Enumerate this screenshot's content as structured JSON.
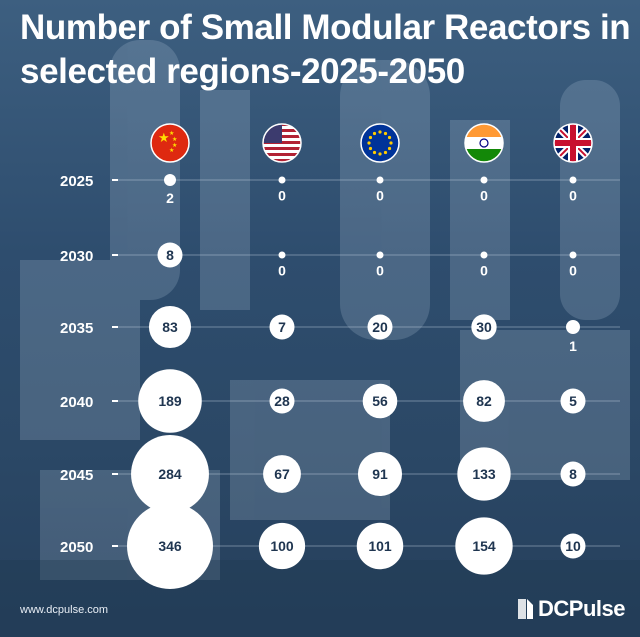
{
  "title": "Number of Small Modular Reactors in selected regions-2025-2050",
  "footer": {
    "website": "www.dcpulse.com",
    "brand": "DCPulse"
  },
  "colors": {
    "bubble": "#ffffff",
    "label": "#1f3550",
    "grid": "#c5d3e2"
  },
  "chart_data": {
    "type": "bubble",
    "title": "Number of Small Modular Reactors in selected regions-2025-2050",
    "rows": [
      "2025",
      "2030",
      "2035",
      "2040",
      "2045",
      "2050"
    ],
    "regions": [
      {
        "name": "China",
        "flag": "china-flag-icon"
      },
      {
        "name": "United States",
        "flag": "usa-flag-icon"
      },
      {
        "name": "European Union",
        "flag": "eu-flag-icon"
      },
      {
        "name": "India",
        "flag": "india-flag-icon"
      },
      {
        "name": "United Kingdom",
        "flag": "uk-flag-icon"
      }
    ],
    "values": [
      [
        2,
        0,
        0,
        0,
        0
      ],
      [
        8,
        0,
        0,
        0,
        0
      ],
      [
        83,
        7,
        20,
        30,
        1
      ],
      [
        189,
        28,
        56,
        82,
        5
      ],
      [
        284,
        67,
        91,
        133,
        8
      ],
      [
        346,
        100,
        101,
        154,
        10
      ]
    ]
  }
}
